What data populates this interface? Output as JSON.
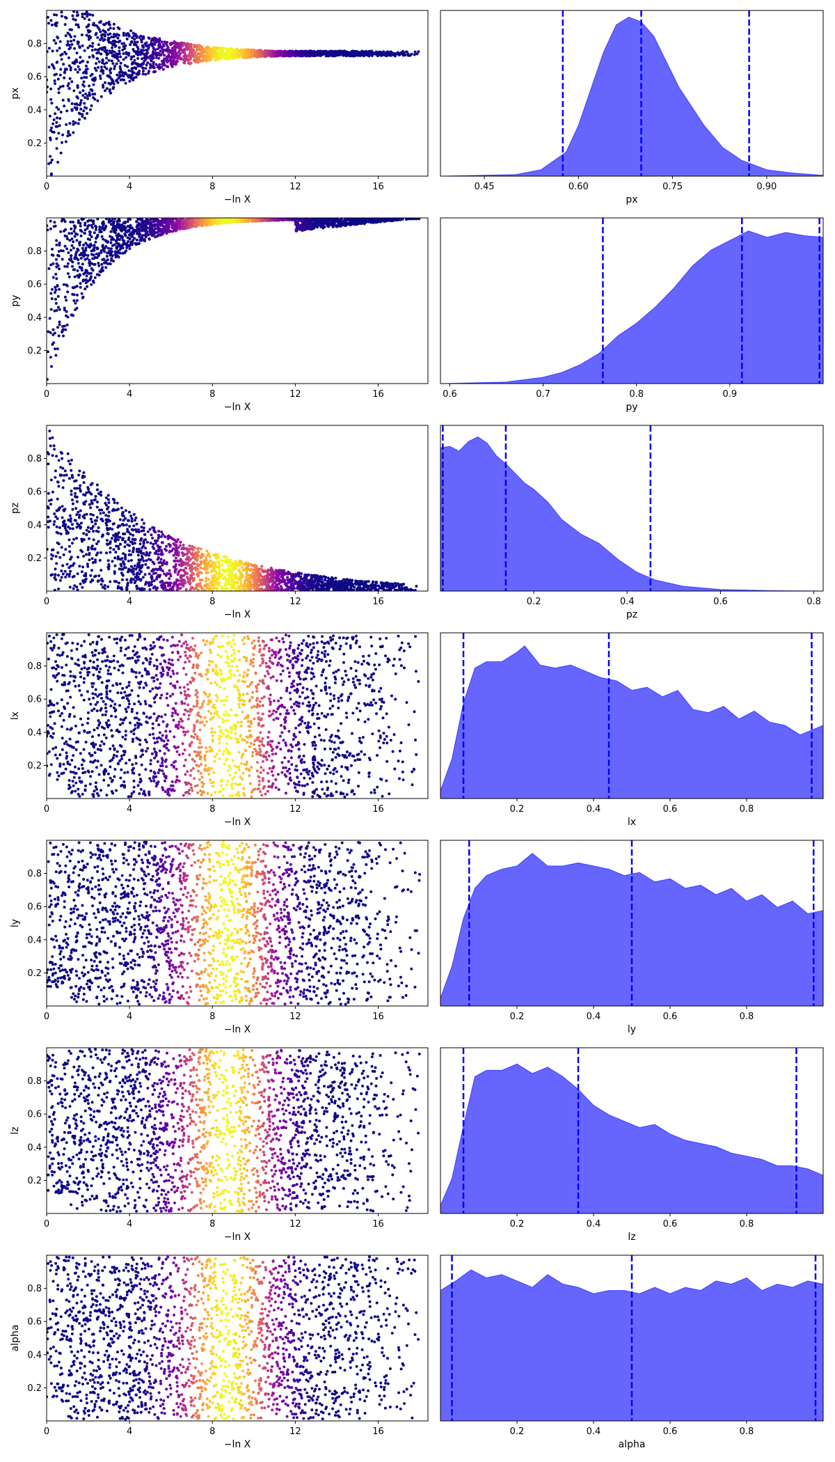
{
  "chart_data": {
    "type": "trace-and-posterior",
    "trace_xlabel": "−ln X",
    "trace_x_ticks": [
      0,
      4,
      8,
      12,
      16
    ],
    "trace_xlim": [
      0,
      18.4
    ],
    "trace_colormap": "plasma",
    "trace_color_peak_at": 8.7,
    "posterior_fill_color": "#0000ff",
    "posterior_fill_opacity": 0.6,
    "quantile_line_color": "#0000ff",
    "parameters": [
      {
        "name": "px",
        "trace_ylim": [
          0,
          1
        ],
        "trace_y_ticks": [
          0.2,
          0.4,
          0.6,
          0.8
        ],
        "trace_y_tick_labels": [
          "0.2",
          "0.4",
          "0.6",
          "0.8"
        ],
        "trace_envelope": "converge",
        "trace_converge_to": 0.74,
        "trace_end": 18.0,
        "posterior_xlim": [
          0.38,
          0.99
        ],
        "posterior_x_ticks": [
          0.45,
          0.6,
          0.75,
          0.9
        ],
        "posterior_x_tick_labels": [
          "0.45",
          "0.60",
          "0.75",
          "0.90"
        ],
        "posterior_quantiles": [
          0.575,
          0.7,
          0.872
        ],
        "posterior_density_x": [
          0.38,
          0.5,
          0.54,
          0.58,
          0.6,
          0.62,
          0.64,
          0.66,
          0.68,
          0.7,
          0.72,
          0.74,
          0.76,
          0.78,
          0.8,
          0.83,
          0.86,
          0.9,
          0.94,
          0.99
        ],
        "posterior_density_y": [
          0.0,
          0.01,
          0.04,
          0.15,
          0.32,
          0.55,
          0.78,
          0.95,
          1.0,
          0.97,
          0.88,
          0.72,
          0.56,
          0.44,
          0.32,
          0.18,
          0.1,
          0.04,
          0.02,
          0.005
        ]
      },
      {
        "name": "py",
        "trace_ylim": [
          0,
          1
        ],
        "trace_y_ticks": [
          0.2,
          0.4,
          0.6,
          0.8
        ],
        "trace_y_tick_labels": [
          "0.2",
          "0.4",
          "0.6",
          "0.8"
        ],
        "trace_envelope": "converge",
        "trace_converge_to": 0.995,
        "trace_end": 18.0,
        "posterior_xlim": [
          0.59,
          1.0
        ],
        "posterior_x_ticks": [
          0.6,
          0.7,
          0.8,
          0.9
        ],
        "posterior_x_tick_labels": [
          "0.6",
          "0.7",
          "0.8",
          "0.9"
        ],
        "posterior_quantiles": [
          0.764,
          0.913,
          0.996
        ],
        "posterior_density_x": [
          0.59,
          0.66,
          0.7,
          0.72,
          0.74,
          0.76,
          0.78,
          0.8,
          0.82,
          0.84,
          0.86,
          0.88,
          0.9,
          0.92,
          0.94,
          0.96,
          0.98,
          1.0
        ],
        "posterior_density_y": [
          0.0,
          0.01,
          0.04,
          0.07,
          0.12,
          0.19,
          0.3,
          0.38,
          0.48,
          0.6,
          0.74,
          0.84,
          0.9,
          0.96,
          0.92,
          0.95,
          0.93,
          0.92
        ]
      },
      {
        "name": "pz",
        "trace_ylim": [
          0,
          1
        ],
        "trace_y_ticks": [
          0.2,
          0.4,
          0.6,
          0.8
        ],
        "trace_y_tick_labels": [
          "0.2",
          "0.4",
          "0.6",
          "0.8"
        ],
        "trace_envelope": "decay",
        "trace_converge_to": 0.02,
        "trace_end": 18.0,
        "posterior_xlim": [
          0.0,
          0.82
        ],
        "posterior_x_ticks": [
          0.2,
          0.4,
          0.6,
          0.8
        ],
        "posterior_x_tick_labels": [
          "0.2",
          "0.4",
          "0.6",
          "0.8"
        ],
        "posterior_quantiles": [
          0.005,
          0.14,
          0.45
        ],
        "posterior_density_x": [
          0.0,
          0.02,
          0.04,
          0.06,
          0.08,
          0.1,
          0.12,
          0.14,
          0.16,
          0.18,
          0.2,
          0.23,
          0.26,
          0.3,
          0.34,
          0.38,
          0.42,
          0.46,
          0.52,
          0.6,
          0.7,
          0.82
        ],
        "posterior_density_y": [
          0.9,
          0.91,
          0.88,
          0.94,
          0.97,
          0.93,
          0.85,
          0.8,
          0.74,
          0.68,
          0.64,
          0.56,
          0.45,
          0.36,
          0.3,
          0.2,
          0.12,
          0.07,
          0.03,
          0.01,
          0.003,
          0.0
        ]
      },
      {
        "name": "lx",
        "trace_ylim": [
          0,
          1
        ],
        "trace_y_ticks": [
          0.2,
          0.4,
          0.6,
          0.8
        ],
        "trace_y_tick_labels": [
          "0.2",
          "0.4",
          "0.6",
          "0.8"
        ],
        "trace_envelope": "uniform",
        "trace_end": 18.0,
        "posterior_xlim": [
          0.0,
          1.0
        ],
        "posterior_x_ticks": [
          0.2,
          0.4,
          0.6,
          0.8
        ],
        "posterior_x_tick_labels": [
          "0.2",
          "0.4",
          "0.6",
          "0.8"
        ],
        "posterior_quantiles": [
          0.06,
          0.44,
          0.97
        ],
        "posterior_density_x": [
          0.0,
          0.03,
          0.06,
          0.09,
          0.12,
          0.16,
          0.2,
          0.22,
          0.26,
          0.3,
          0.34,
          0.38,
          0.42,
          0.46,
          0.5,
          0.54,
          0.58,
          0.62,
          0.66,
          0.7,
          0.74,
          0.78,
          0.82,
          0.86,
          0.9,
          0.94,
          0.98,
          1.0
        ],
        "posterior_density_y": [
          0.05,
          0.25,
          0.6,
          0.82,
          0.86,
          0.86,
          0.92,
          0.96,
          0.84,
          0.82,
          0.84,
          0.8,
          0.76,
          0.74,
          0.68,
          0.7,
          0.64,
          0.68,
          0.56,
          0.54,
          0.58,
          0.5,
          0.55,
          0.48,
          0.46,
          0.4,
          0.44,
          0.46
        ]
      },
      {
        "name": "ly",
        "trace_ylim": [
          0,
          1
        ],
        "trace_y_ticks": [
          0.2,
          0.4,
          0.6,
          0.8
        ],
        "trace_y_tick_labels": [
          "0.2",
          "0.4",
          "0.6",
          "0.8"
        ],
        "trace_envelope": "uniform",
        "trace_end": 18.0,
        "posterior_xlim": [
          0.0,
          1.0
        ],
        "posterior_x_ticks": [
          0.2,
          0.4,
          0.6,
          0.8
        ],
        "posterior_x_tick_labels": [
          "0.2",
          "0.4",
          "0.6",
          "0.8"
        ],
        "posterior_quantiles": [
          0.075,
          0.5,
          0.975
        ],
        "posterior_density_x": [
          0.0,
          0.03,
          0.06,
          0.09,
          0.12,
          0.16,
          0.2,
          0.24,
          0.28,
          0.32,
          0.36,
          0.4,
          0.44,
          0.48,
          0.52,
          0.56,
          0.6,
          0.64,
          0.68,
          0.72,
          0.76,
          0.8,
          0.84,
          0.88,
          0.92,
          0.96,
          1.0
        ],
        "posterior_density_y": [
          0.05,
          0.25,
          0.55,
          0.74,
          0.82,
          0.86,
          0.88,
          0.96,
          0.88,
          0.88,
          0.9,
          0.88,
          0.86,
          0.82,
          0.84,
          0.78,
          0.8,
          0.74,
          0.76,
          0.7,
          0.74,
          0.66,
          0.7,
          0.62,
          0.66,
          0.58,
          0.6
        ]
      },
      {
        "name": "lz",
        "trace_ylim": [
          0,
          1
        ],
        "trace_y_ticks": [
          0.2,
          0.4,
          0.6,
          0.8
        ],
        "trace_y_tick_labels": [
          "0.2",
          "0.4",
          "0.6",
          "0.8"
        ],
        "trace_envelope": "uniform",
        "trace_end": 18.0,
        "posterior_xlim": [
          0.0,
          1.0
        ],
        "posterior_x_ticks": [
          0.2,
          0.4,
          0.6,
          0.8
        ],
        "posterior_x_tick_labels": [
          "0.2",
          "0.4",
          "0.6",
          "0.8"
        ],
        "posterior_quantiles": [
          0.06,
          0.36,
          0.93
        ],
        "posterior_density_x": [
          0.0,
          0.03,
          0.06,
          0.09,
          0.12,
          0.16,
          0.2,
          0.24,
          0.28,
          0.32,
          0.36,
          0.4,
          0.44,
          0.48,
          0.52,
          0.56,
          0.6,
          0.64,
          0.68,
          0.72,
          0.76,
          0.8,
          0.84,
          0.88,
          0.92,
          0.96,
          1.0
        ],
        "posterior_density_y": [
          0.05,
          0.22,
          0.55,
          0.86,
          0.9,
          0.9,
          0.94,
          0.88,
          0.92,
          0.86,
          0.78,
          0.68,
          0.62,
          0.58,
          0.54,
          0.56,
          0.5,
          0.46,
          0.44,
          0.42,
          0.38,
          0.36,
          0.34,
          0.3,
          0.3,
          0.28,
          0.24
        ]
      },
      {
        "name": "alpha",
        "trace_ylim": [
          0,
          1
        ],
        "trace_y_ticks": [
          0.2,
          0.4,
          0.6,
          0.8
        ],
        "trace_y_tick_labels": [
          "0.2",
          "0.4",
          "0.6",
          "0.8"
        ],
        "trace_envelope": "uniform",
        "trace_end": 18.0,
        "posterior_xlim": [
          0.0,
          1.0
        ],
        "posterior_x_ticks": [
          0.2,
          0.4,
          0.6,
          0.8
        ],
        "posterior_x_tick_labels": [
          "0.2",
          "0.4",
          "0.6",
          "0.8"
        ],
        "posterior_quantiles": [
          0.03,
          0.5,
          0.98
        ],
        "posterior_density_x": [
          0.0,
          0.04,
          0.08,
          0.12,
          0.16,
          0.2,
          0.24,
          0.28,
          0.32,
          0.36,
          0.4,
          0.44,
          0.48,
          0.52,
          0.56,
          0.6,
          0.64,
          0.68,
          0.72,
          0.76,
          0.8,
          0.84,
          0.88,
          0.92,
          0.96,
          1.0
        ],
        "posterior_density_y": [
          0.82,
          0.88,
          0.95,
          0.9,
          0.92,
          0.88,
          0.84,
          0.92,
          0.86,
          0.84,
          0.8,
          0.82,
          0.82,
          0.8,
          0.84,
          0.8,
          0.84,
          0.82,
          0.88,
          0.86,
          0.9,
          0.82,
          0.86,
          0.84,
          0.88,
          0.86
        ]
      }
    ]
  }
}
